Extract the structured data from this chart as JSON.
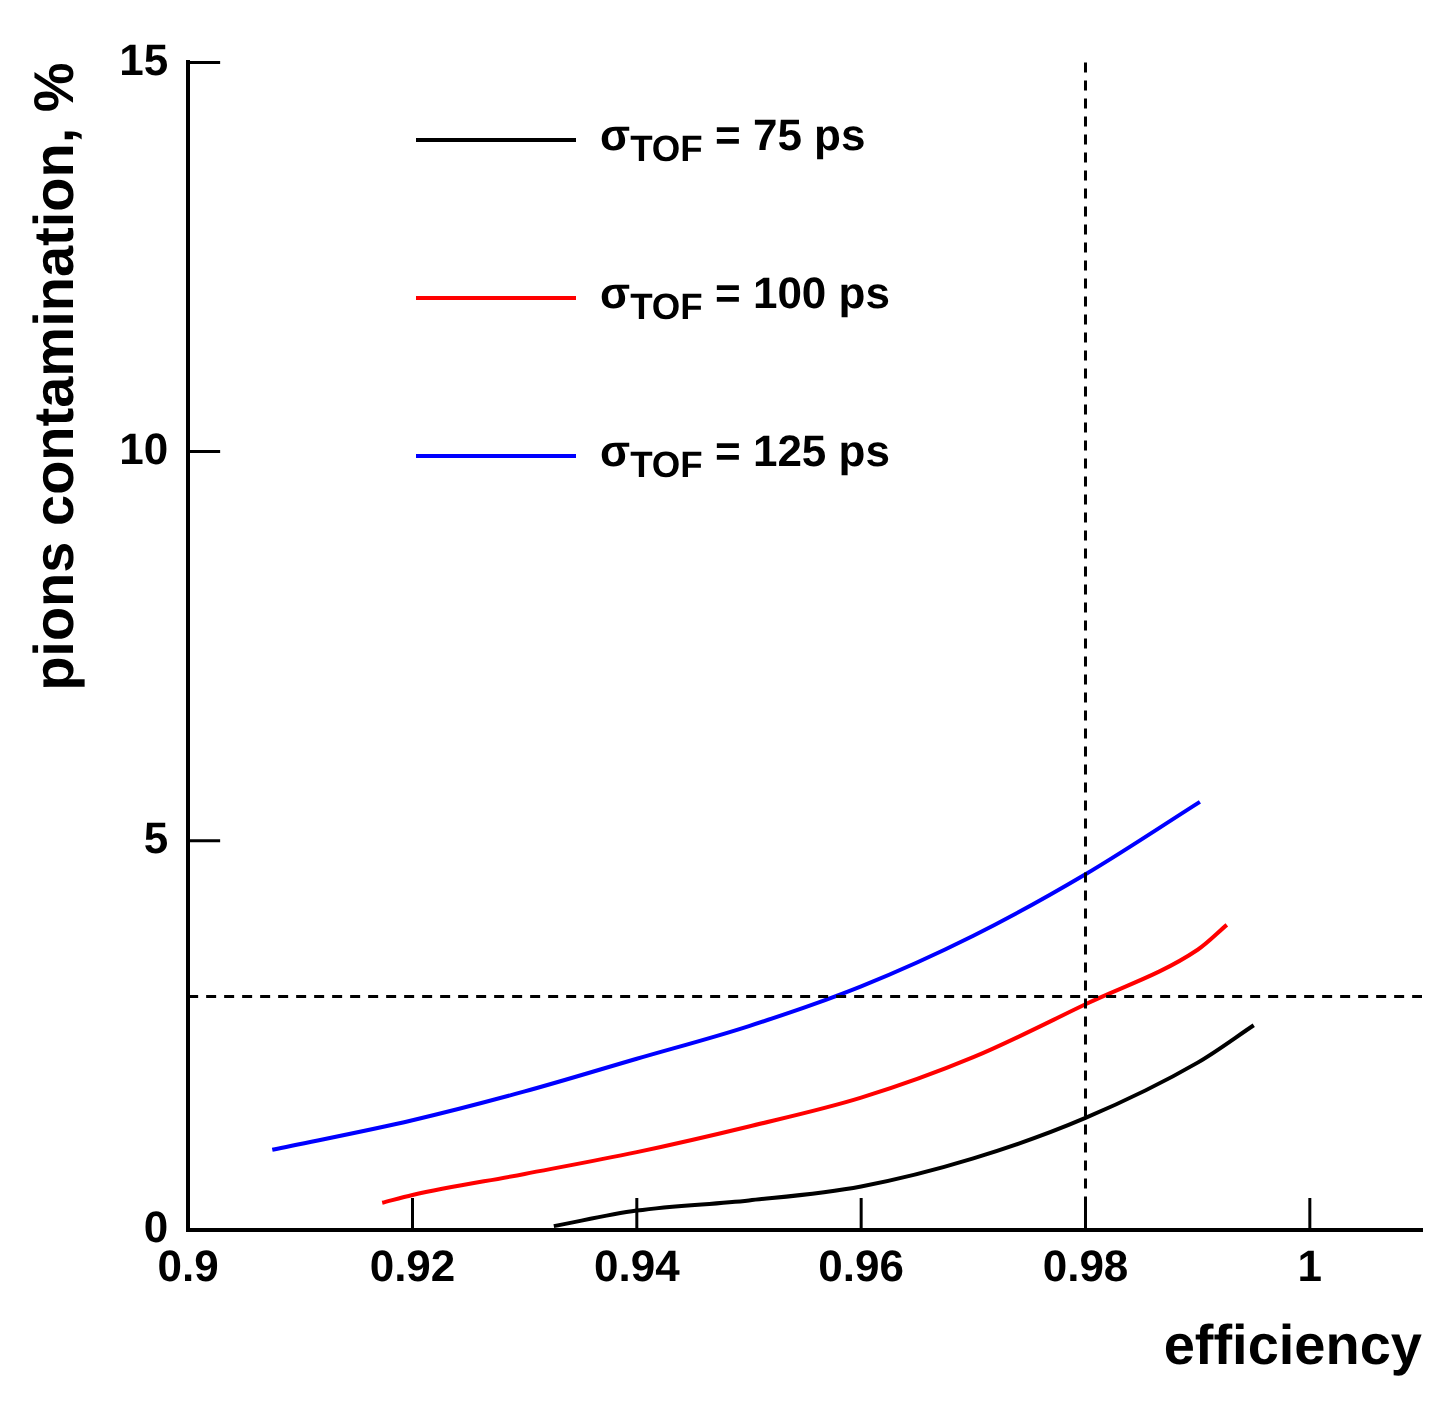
{
  "chart_data": {
    "type": "line",
    "xlabel": "efficiency",
    "ylabel": "pions contamination, %",
    "xlim": [
      0.9,
      1.01
    ],
    "xticks": [
      0.9,
      0.92,
      0.94,
      0.96,
      0.98,
      1
    ],
    "ylim": [
      0,
      15
    ],
    "yticks": [
      0,
      5,
      10,
      15
    ],
    "grid": false,
    "legend": "top left",
    "marker": "none",
    "line_style": "solid",
    "series": [
      {
        "name": "σ$_{TOF}$ = 75 ps",
        "color": "#000000",
        "x": [
          0.9326,
          0.94,
          0.95,
          0.96,
          0.97,
          0.98,
          0.99,
          0.995
        ],
        "values": [
          0.05,
          0.25,
          0.38,
          0.56,
          0.92,
          1.44,
          2.15,
          2.63
        ]
      },
      {
        "name": "σ$_{TOF}$ = 100 ps",
        "color": "#ff0000",
        "x": [
          0.9173,
          0.92,
          0.93,
          0.94,
          0.95,
          0.96,
          0.97,
          0.98,
          0.99,
          0.9926
        ],
        "values": [
          0.35,
          0.45,
          0.72,
          1.0,
          1.33,
          1.7,
          2.22,
          2.9,
          3.6,
          3.92
        ]
      },
      {
        "name": "σ$_{TOF}$ = 125 ps",
        "color": "#0000ff",
        "x": [
          0.9075,
          0.92,
          0.93,
          0.94,
          0.95,
          0.96,
          0.97,
          0.98,
          0.9902
        ],
        "values": [
          1.03,
          1.41,
          1.78,
          2.2,
          2.62,
          3.13,
          3.78,
          4.57,
          5.5
        ]
      }
    ],
    "ref_lines": [
      {
        "axis": "x",
        "value": 0.98,
        "line_style": "dashed"
      },
      {
        "axis": "y",
        "value": 3,
        "line_style": "dashed"
      }
    ]
  }
}
